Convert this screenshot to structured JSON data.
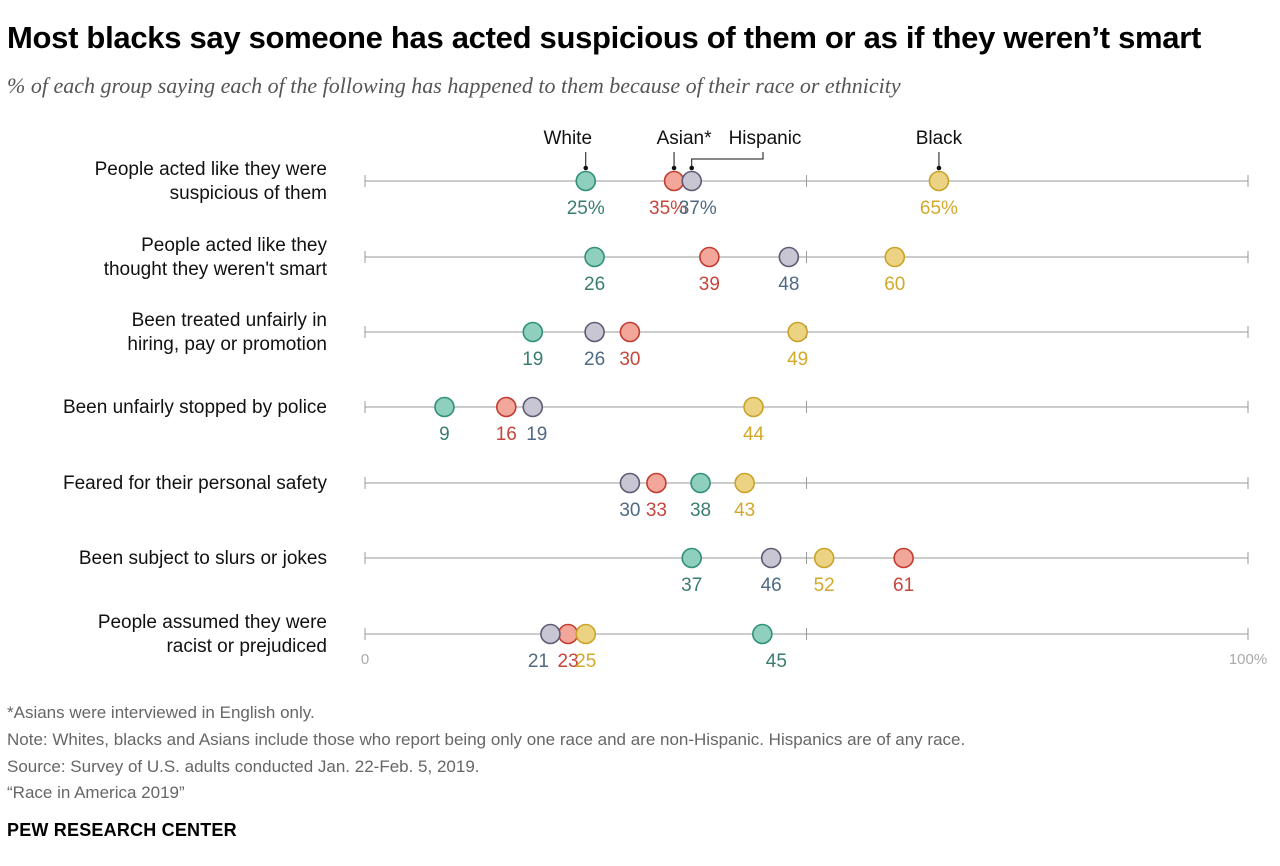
{
  "title": "Most blacks say someone has acted suspicious of them or as if they weren’t smart",
  "subtitle": "% of each group saying each of the following has happened to them because of their race or ethnicity",
  "notes": [
    "*Asians were interviewed in English only.",
    "Note: Whites, blacks and Asians include those who report being only one race and are non-Hispanic. Hispanics are of any race.",
    "Source: Survey of U.S. adults conducted Jan. 22-Feb. 5, 2019.",
    "“Race in America 2019”"
  ],
  "brand": "PEW RESEARCH CENTER",
  "chart_data": {
    "type": "scatter",
    "subtype": "dot-plot",
    "xlim": [
      0,
      100
    ],
    "x_tick_labels": [
      "0",
      "100%"
    ],
    "grid": true,
    "legend": "labels above first row",
    "categories": [
      [
        "People acted like they were",
        "suspicious of them"
      ],
      [
        "People acted like they",
        "thought they weren't smart"
      ],
      [
        "Been treated unfairly in",
        "hiring, pay or promotion"
      ],
      [
        "Been unfairly stopped by police"
      ],
      [
        "Feared for their personal safety"
      ],
      [
        "Been subject to slurs or jokes"
      ],
      [
        "People assumed they were",
        "racist or prejudiced"
      ]
    ],
    "series": [
      {
        "name": "White",
        "legend_label": "White",
        "fill": "#8fcfbd",
        "stroke": "#2f8f78",
        "label_color": "#3a7d6e",
        "values": [
          25,
          26,
          19,
          9,
          38,
          37,
          45
        ],
        "labels": [
          "25%",
          "26",
          "19",
          "9",
          "38",
          "37",
          "45"
        ]
      },
      {
        "name": "Asian",
        "legend_label": "Asian*",
        "fill": "#f2a79a",
        "stroke": "#c23b2e",
        "label_color": "#c4463a",
        "values": [
          35,
          39,
          30,
          16,
          33,
          61,
          23
        ],
        "labels": [
          "35%",
          "39",
          "30",
          "16",
          "33",
          "61",
          "23"
        ]
      },
      {
        "name": "Hispanic",
        "legend_label": "Hispanic",
        "fill": "#c9c6d4",
        "stroke": "#5f5a73",
        "label_color": "#4e6a84",
        "values": [
          37,
          48,
          26,
          19,
          30,
          46,
          21
        ],
        "labels": [
          "37%",
          "48",
          "26",
          "19",
          "30",
          "46",
          "21"
        ]
      },
      {
        "name": "Black",
        "legend_label": "Black",
        "fill": "#ecd383",
        "stroke": "#c9a227",
        "label_color": "#d2a92b",
        "values": [
          65,
          60,
          49,
          44,
          43,
          52,
          25
        ],
        "labels": [
          "65%",
          "60",
          "49",
          "44",
          "43",
          "52",
          "25"
        ]
      }
    ]
  }
}
